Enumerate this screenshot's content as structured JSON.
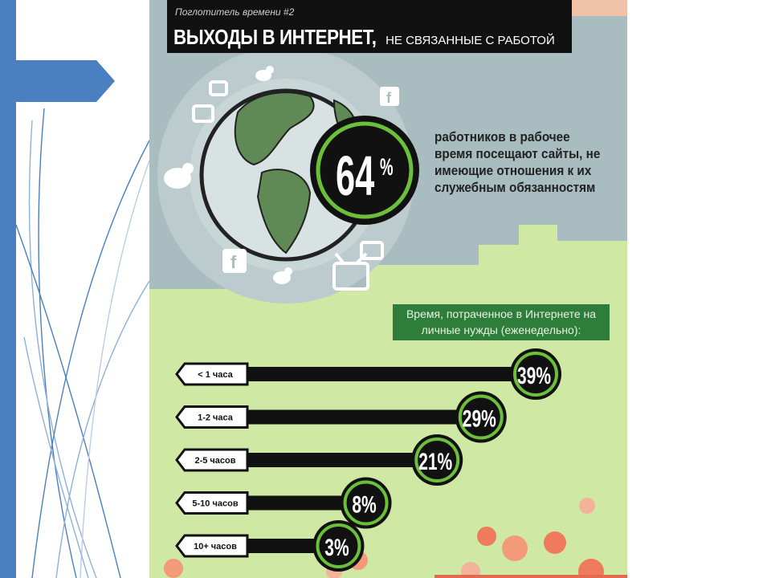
{
  "header": {
    "kicker": "Поглотитель времени #2",
    "title_main": "ВЫХОДЫ В ИНТЕРНЕТ,",
    "title_sub": "НЕ СВЯЗАННЫЕ С РАБОТОЙ"
  },
  "stat": {
    "value": "64",
    "unit": "%",
    "text": "работников в рабочее время посещают сайты, не имеющие отношения к их служебным обязанностям"
  },
  "icons": [
    "globe-icon",
    "twitter-bird-icon",
    "facebook-icon",
    "tv-icon"
  ],
  "colors": {
    "panel_bg": "#a9bcbf",
    "lower_bg": "#cfe8a4",
    "ring_green": "#6bbf3a",
    "bar": "#111111",
    "title_box": "#2e7d3a",
    "slide_accent": "#4a7fc1"
  },
  "chart_data": {
    "type": "bar",
    "orientation": "horizontal",
    "title": "Время, потраченное в Интернете на личные нужды (еженедельно):",
    "categories": [
      "< 1 часа",
      "1-2 часа",
      "2-5 часов",
      "5-10 часов",
      "10+ часов"
    ],
    "values": [
      39,
      29,
      21,
      8,
      3
    ],
    "labels": [
      "39%",
      "29%",
      "21%",
      "8%",
      "3%"
    ],
    "xlim": [
      0,
      39
    ]
  }
}
